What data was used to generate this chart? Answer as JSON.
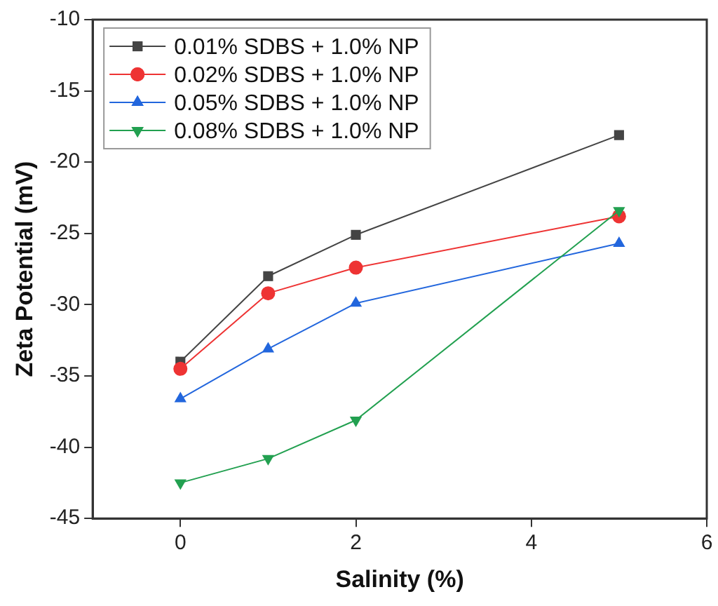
{
  "chart_data": {
    "type": "line",
    "xlabel": "Salinity (%)",
    "ylabel": "Zeta Potential (mV)",
    "x": [
      0,
      1,
      2,
      5
    ],
    "xlim": [
      -1,
      6
    ],
    "xticks": [
      0,
      2,
      4,
      6
    ],
    "ylim": [
      -45,
      -10
    ],
    "yticks": [
      -45,
      -40,
      -35,
      -30,
      -25,
      -20,
      -15,
      -10
    ],
    "grid": false,
    "legend": "top left",
    "line_style": "solid",
    "series": [
      {
        "name": "0.01% SDBS + 1.0% NP",
        "color": "#444444",
        "marker": "square",
        "values": [
          -34,
          -28,
          -25.1,
          -18.1
        ]
      },
      {
        "name": "0.02% SDBS + 1.0% NP",
        "color": "#ee3333",
        "marker": "circle",
        "values": [
          -34.5,
          -29.2,
          -27.4,
          -23.8
        ]
      },
      {
        "name": "0.05% SDBS + 1.0% NP",
        "color": "#2266dd",
        "marker": "triangle",
        "values": [
          -36.6,
          -33.1,
          -29.9,
          -25.7
        ]
      },
      {
        "name": "0.08% SDBS + 1.0% NP",
        "color": "#22a050",
        "marker": "triangle_down",
        "values": [
          -42.5,
          -40.8,
          -38.1,
          -23.4
        ]
      }
    ]
  }
}
